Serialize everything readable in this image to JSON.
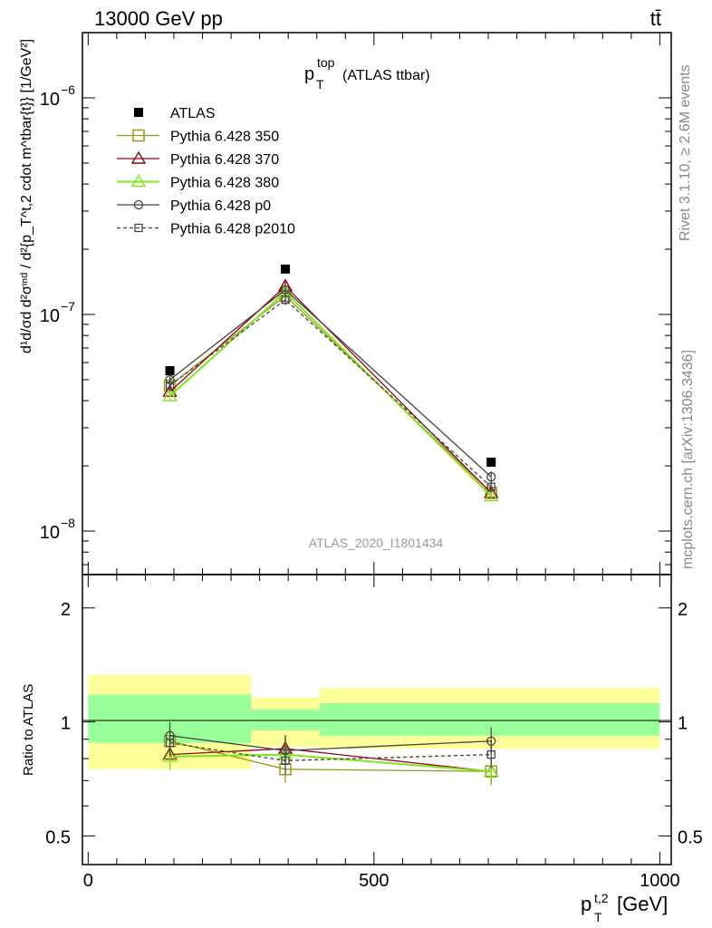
{
  "header": {
    "left": "13000 GeV pp",
    "right": "tt̄"
  },
  "plot_title": {
    "main": "p",
    "sup": "top",
    "sub": "T",
    "suffix": "(ATLAS ttbar)"
  },
  "side_labels": {
    "rivet": "Rivet 3.1.10, ≥ 2.6M events",
    "mcplots": "mcplots.cern.ch [arXiv:1306.3436]"
  },
  "watermark": "ATLAS_2020_I1801434",
  "legend": [
    {
      "label": "ATLAS",
      "color": "#000000",
      "marker": "filled-square",
      "dash": ""
    },
    {
      "label": "Pythia 6.428 350",
      "color": "#99991f",
      "marker": "open-square",
      "dash": ""
    },
    {
      "label": "Pythia 6.428 370",
      "color": "#99001a",
      "marker": "open-triangle",
      "dash": ""
    },
    {
      "label": "Pythia 6.428 380",
      "color": "#80e61a",
      "marker": "open-triangle",
      "dash": ""
    },
    {
      "label": "Pythia 6.428 p0",
      "color": "#444444",
      "marker": "open-circle",
      "dash": ""
    },
    {
      "label": "Pythia 6.428 p2010",
      "color": "#444444",
      "marker": "open-square-small",
      "dash": "4,3"
    }
  ],
  "y_axis_main": {
    "label": "d¹d/σd d²σᶦⁿᵈ / d²{p_T^t,2 cdot m^tbar{t}} [1/GeV²]",
    "ticks": [
      {
        "value": 1e-06,
        "base": "10",
        "exp": "−6"
      },
      {
        "value": 1e-07,
        "base": "10",
        "exp": "−7"
      },
      {
        "value": 1e-08,
        "base": "10",
        "exp": "−8"
      }
    ]
  },
  "y_axis_ratio": {
    "label": "Ratio to ATLAS",
    "ticks": [
      "0.5",
      "1",
      "2"
    ]
  },
  "x_axis": {
    "label_main": "p",
    "label_sup": "t,2",
    "label_sub": "T",
    "label_unit": "[GeV]",
    "ticks": [
      "0",
      "500",
      "1000"
    ]
  },
  "chart_data": {
    "type": "line",
    "x_scale": "linear",
    "y_scale": "log",
    "xlim": [
      -10,
      1020
    ],
    "ylim": [
      6.3e-09,
      2e-06
    ],
    "ratio_ylim": [
      0.42,
      2.45
    ],
    "bins": [
      [
        0,
        285
      ],
      [
        285,
        405
      ],
      [
        405,
        1000
      ]
    ],
    "x": [
      143,
      345,
      705
    ],
    "series": [
      {
        "name": "ATLAS",
        "values": [
          5.5e-08,
          1.62e-07,
          2.08e-08
        ],
        "ratio": [
          1.0,
          1.0,
          1.0
        ]
      },
      {
        "name": "Pythia 6.428 350",
        "values": [
          4.7e-08,
          1.22e-07,
          1.5e-08
        ],
        "ratio": [
          0.89,
          0.75,
          0.74
        ]
      },
      {
        "name": "Pythia 6.428 370",
        "values": [
          4.4e-08,
          1.35e-07,
          1.5e-08
        ],
        "ratio": [
          0.82,
          0.85,
          0.74
        ]
      },
      {
        "name": "Pythia 6.428 380",
        "values": [
          4.2e-08,
          1.27e-07,
          1.45e-08
        ],
        "ratio": [
          0.81,
          0.82,
          0.74
        ]
      },
      {
        "name": "Pythia 6.428 p0",
        "values": [
          5e-08,
          1.3e-07,
          1.78e-08
        ],
        "ratio": [
          0.92,
          0.84,
          0.89
        ]
      },
      {
        "name": "Pythia 6.428 p2010",
        "values": [
          4.7e-08,
          1.17e-07,
          1.6e-08
        ],
        "ratio": [
          0.88,
          0.79,
          0.82
        ]
      }
    ],
    "ratio_bands": {
      "inner": [
        [
          0.88,
          1.18
        ],
        [
          0.95,
          1.08
        ],
        [
          0.92,
          1.12
        ]
      ],
      "outer": [
        [
          0.75,
          1.33
        ],
        [
          0.86,
          1.16
        ],
        [
          0.85,
          1.23
        ]
      ]
    },
    "colors": {
      "band_inner": "#99ff99",
      "band_outer": "#ffff99"
    }
  }
}
